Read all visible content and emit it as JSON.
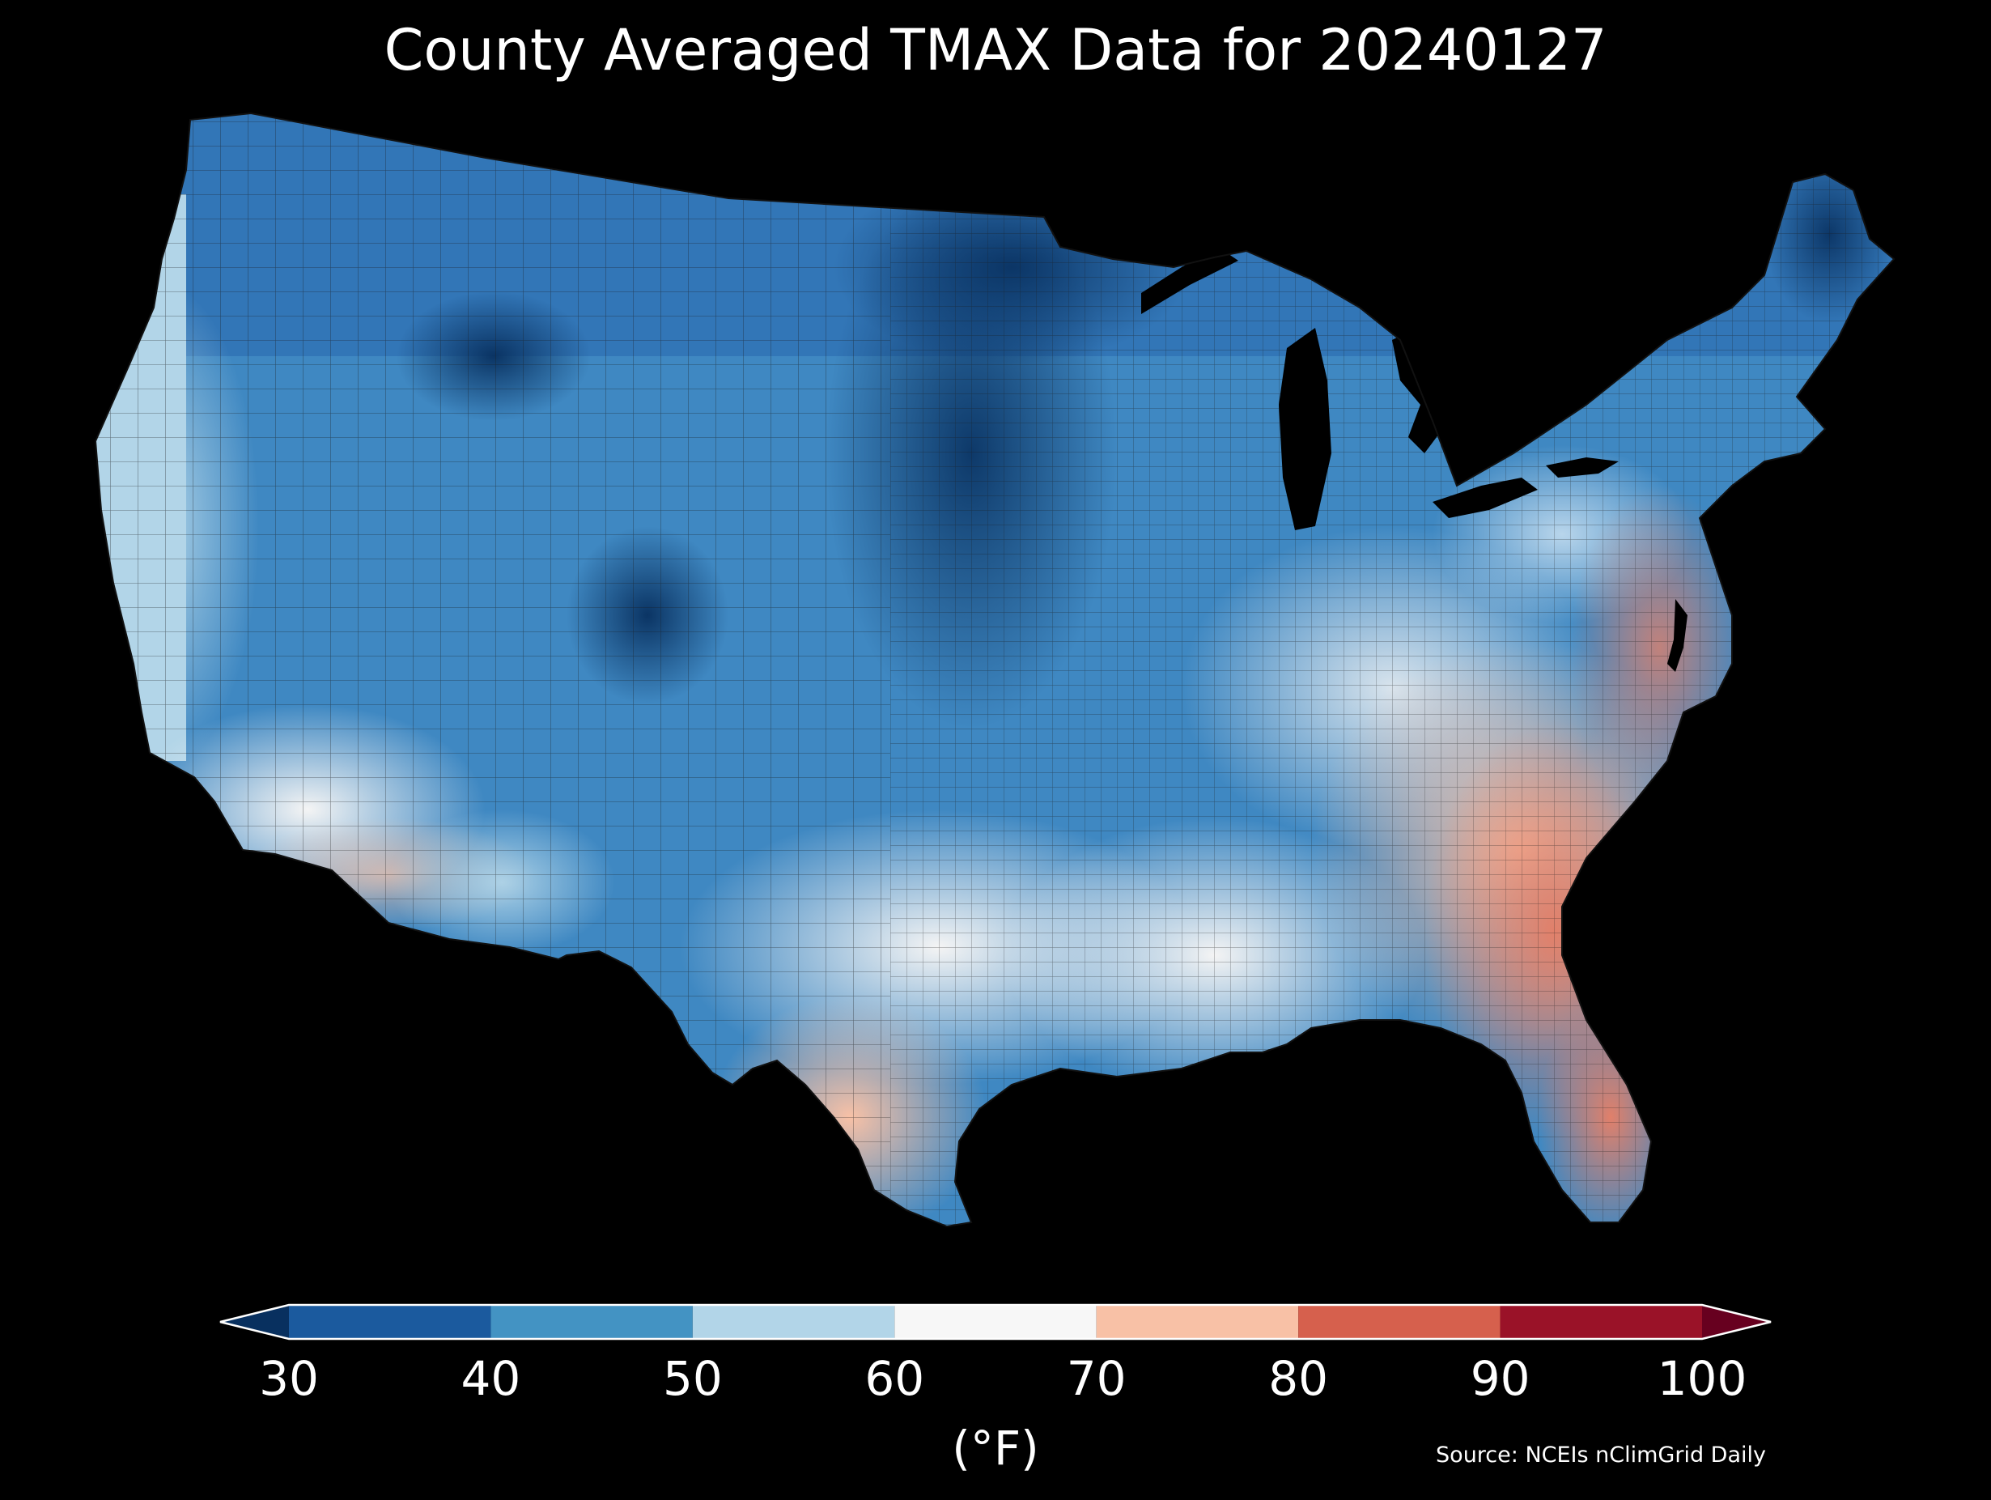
{
  "title": "County Averaged TMAX Data for 20240127",
  "colorbar": {
    "unit_label": "(°F)",
    "min": 30,
    "max": 100,
    "ticks": [
      "30",
      "40",
      "50",
      "60",
      "70",
      "80",
      "90",
      "100"
    ],
    "bins": [
      {
        "from": 30,
        "to": 40,
        "color": "#1b5a9e"
      },
      {
        "from": 40,
        "to": 50,
        "color": "#4393c3"
      },
      {
        "from": 50,
        "to": 60,
        "color": "#b2d5e8"
      },
      {
        "from": 60,
        "to": 70,
        "color": "#f7f7f7"
      },
      {
        "from": 70,
        "to": 80,
        "color": "#f8c1a6"
      },
      {
        "from": 80,
        "to": 90,
        "color": "#d6604d"
      },
      {
        "from": 90,
        "to": 100,
        "color": "#9a1228"
      }
    ],
    "under_color": "#08305f",
    "over_color": "#67001f"
  },
  "source": "Source: NCEIs nClimGrid Daily",
  "colors": {
    "background": "#000000",
    "text": "#ffffff",
    "county_border": "#1a1a1a"
  }
}
